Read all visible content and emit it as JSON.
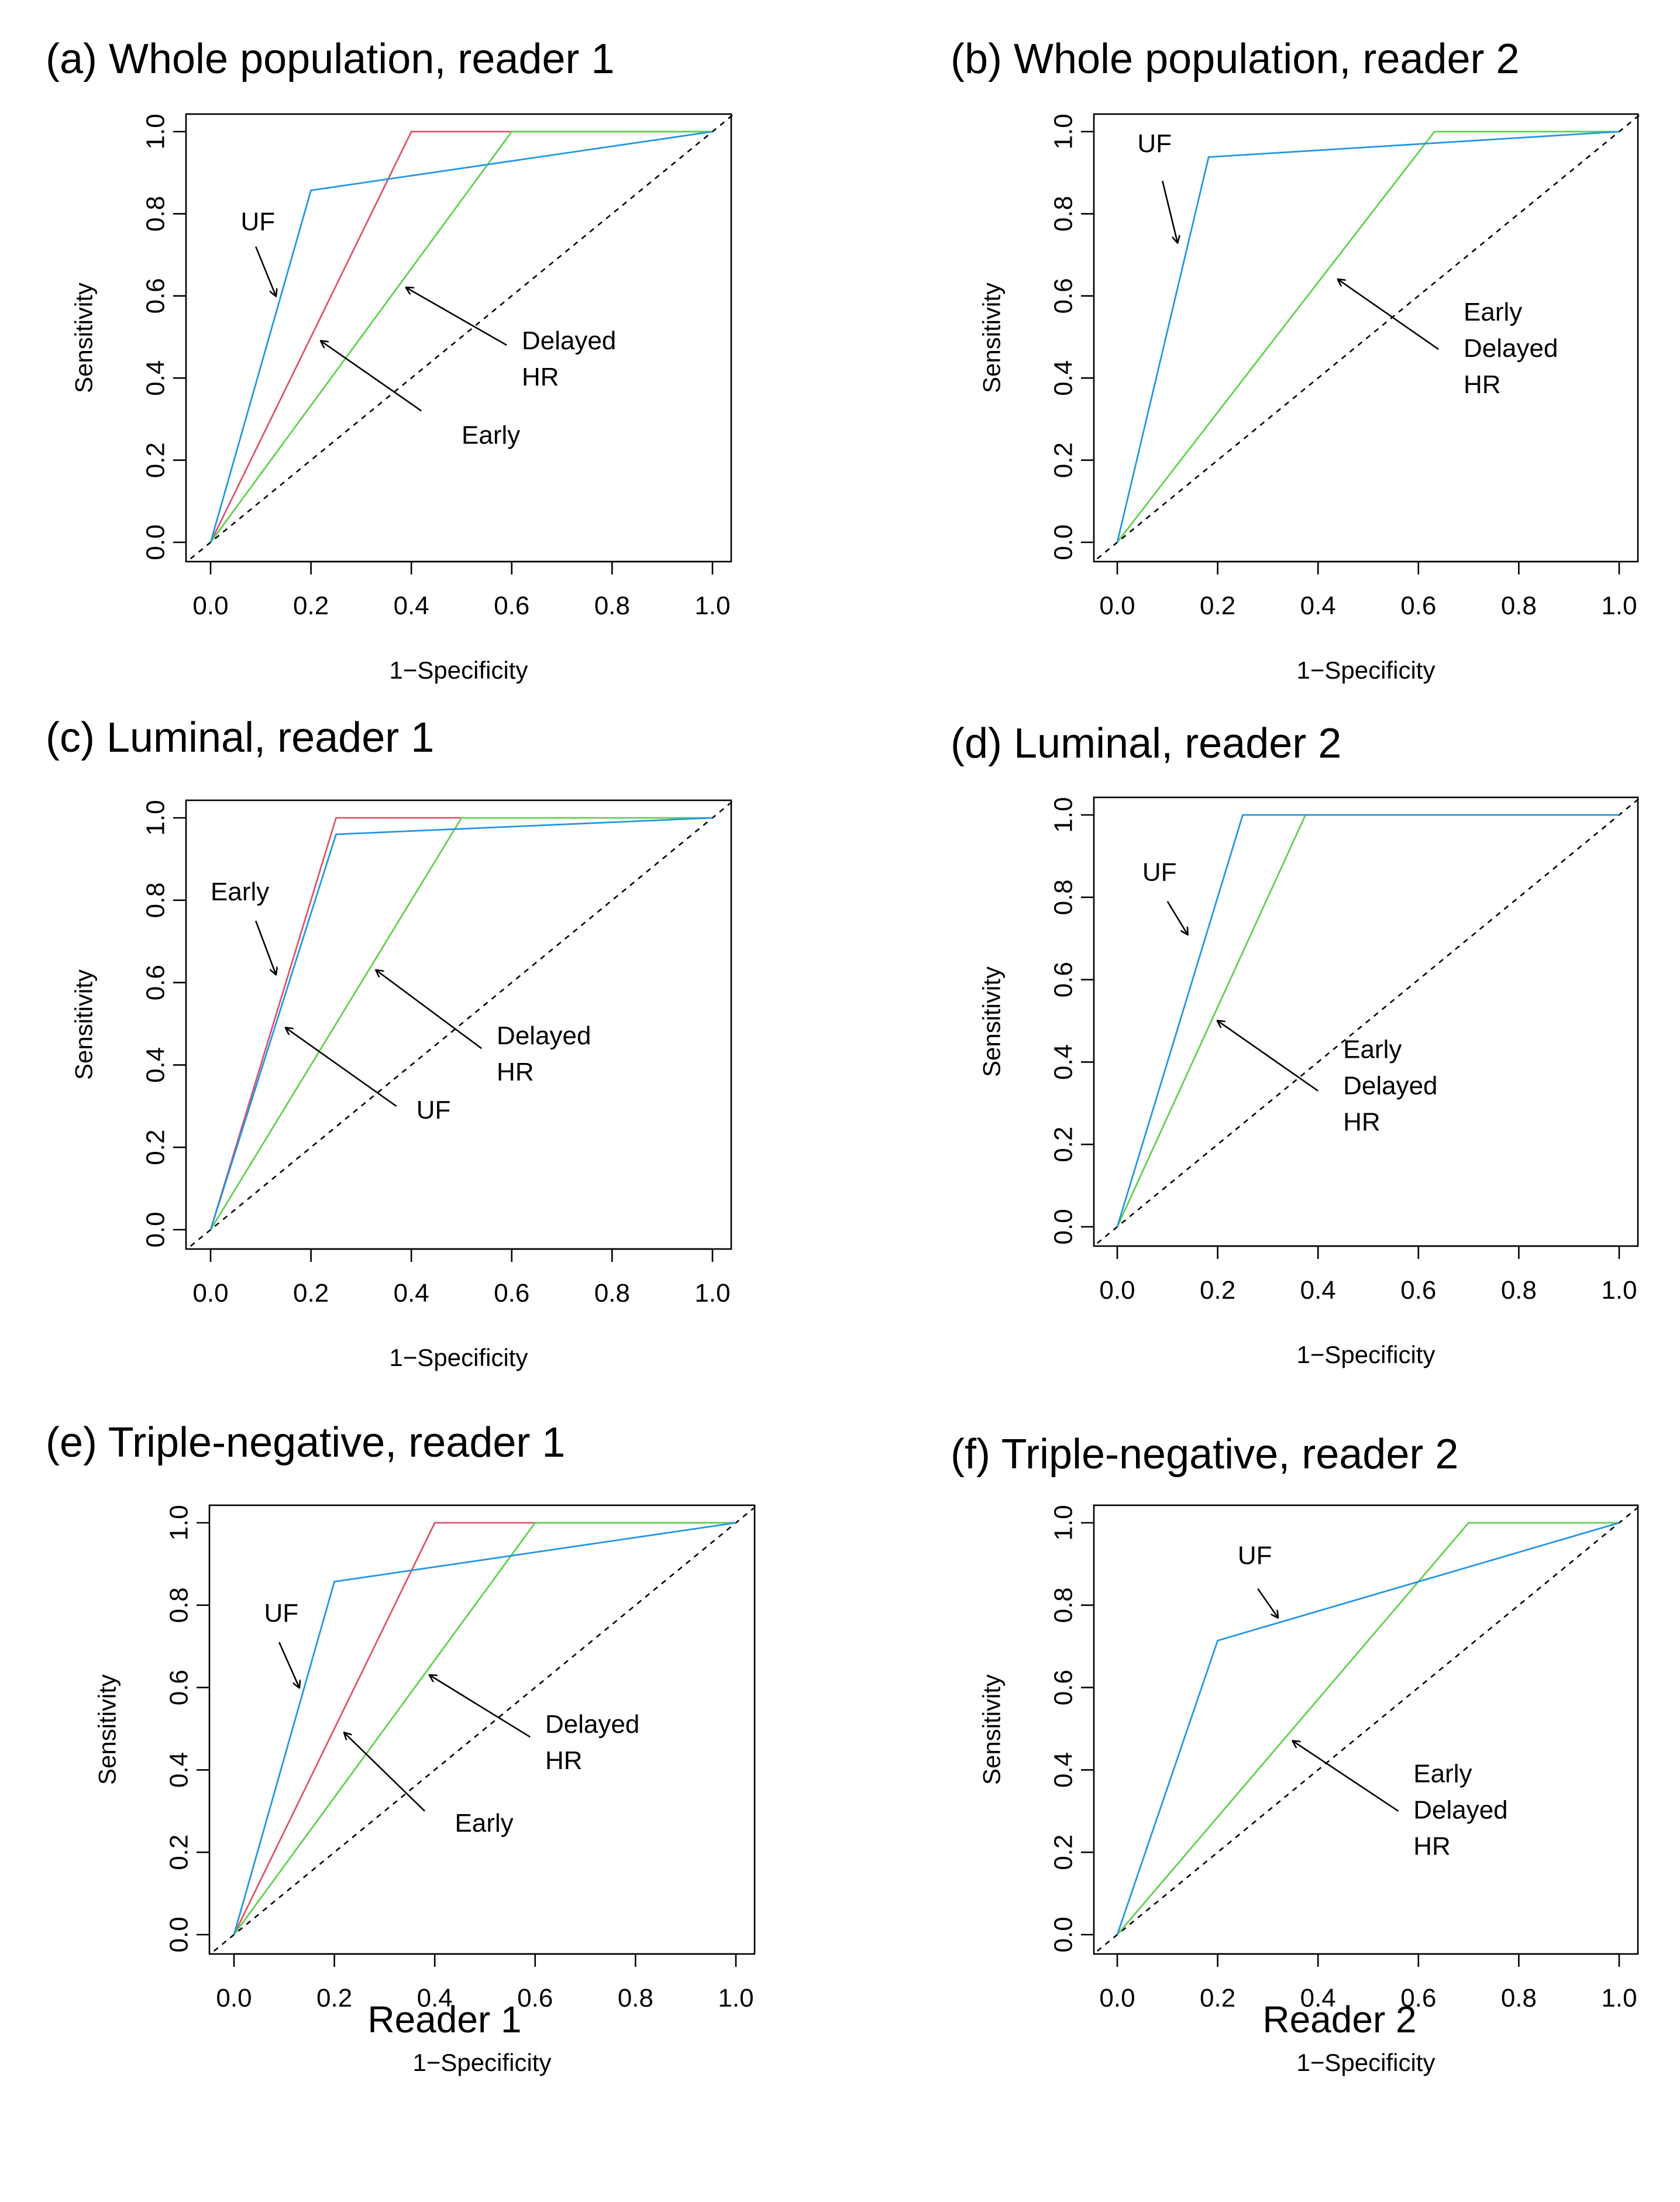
{
  "colors": {
    "early": "#df536b",
    "delayed_hr": "#61d04f",
    "uf": "#2297e6",
    "chance": "#000000"
  },
  "bottom_labels": {
    "reader1": "Reader 1",
    "reader2": "Reader 2"
  },
  "chart_data": [
    {
      "panel": "a",
      "type": "line",
      "title": "(a) Whole population, reader 1",
      "xlabel": "1−Specificity",
      "ylabel": "Sensitivity",
      "xlim": [
        0,
        1
      ],
      "ylim": [
        0,
        1
      ],
      "xticks": [
        "0.0",
        "0.2",
        "0.4",
        "0.6",
        "0.8",
        "1.0"
      ],
      "yticks": [
        "0.0",
        "0.2",
        "0.4",
        "0.6",
        "0.8",
        "1.0"
      ],
      "series": [
        {
          "name": "Early",
          "color": "early",
          "x": [
            0,
            0.4,
            1.0
          ],
          "y": [
            0,
            1.0,
            1.0
          ]
        },
        {
          "name": "Delayed HR",
          "color": "delayed_hr",
          "x": [
            0,
            0.6,
            1.0
          ],
          "y": [
            0,
            1.0,
            1.0
          ]
        },
        {
          "name": "UF",
          "color": "uf",
          "x": [
            0,
            0.2,
            1.0
          ],
          "y": [
            0,
            0.857,
            1.0
          ]
        }
      ],
      "annotations": [
        {
          "lines": [
            "UF"
          ],
          "at": [
            0.06,
            0.76
          ],
          "arrow_from": [
            0.09,
            0.72
          ],
          "arrow_to": [
            0.13,
            0.6
          ]
        },
        {
          "lines": [
            "Delayed",
            "HR"
          ],
          "at": [
            0.62,
            0.47
          ],
          "arrow_from": [
            0.59,
            0.48
          ],
          "arrow_to": [
            0.39,
            0.62
          ]
        },
        {
          "lines": [
            "Early"
          ],
          "at": [
            0.5,
            0.24
          ],
          "arrow_from": [
            0.42,
            0.32
          ],
          "arrow_to": [
            0.22,
            0.49
          ]
        }
      ]
    },
    {
      "panel": "b",
      "type": "line",
      "title": "(b) Whole population, reader 2",
      "xlabel": "1−Specificity",
      "ylabel": "Sensitivity",
      "xlim": [
        0,
        1
      ],
      "ylim": [
        0,
        1
      ],
      "xticks": [
        "0.0",
        "0.2",
        "0.4",
        "0.6",
        "0.8",
        "1.0"
      ],
      "yticks": [
        "0.0",
        "0.2",
        "0.4",
        "0.6",
        "0.8",
        "1.0"
      ],
      "series": [
        {
          "name": "Early/Delayed HR",
          "color": "delayed_hr",
          "x": [
            0,
            0.632,
            1.0
          ],
          "y": [
            0,
            1.0,
            1.0
          ]
        },
        {
          "name": "UF",
          "color": "uf",
          "x": [
            0,
            0.182,
            1.0
          ],
          "y": [
            0,
            0.938,
            1.0
          ]
        }
      ],
      "annotations": [
        {
          "lines": [
            "UF"
          ],
          "at": [
            0.04,
            0.95
          ],
          "arrow_from": [
            0.09,
            0.88
          ],
          "arrow_to": [
            0.12,
            0.73
          ]
        },
        {
          "lines": [
            "Early",
            "Delayed",
            "HR"
          ],
          "at": [
            0.69,
            0.54
          ],
          "arrow_from": [
            0.64,
            0.47
          ],
          "arrow_to": [
            0.44,
            0.64
          ]
        }
      ]
    },
    {
      "panel": "c",
      "type": "line",
      "title": "(c) Luminal, reader 1",
      "xlabel": "1−Specificity",
      "ylabel": "Sensitivity",
      "xlim": [
        0,
        1
      ],
      "ylim": [
        0,
        1
      ],
      "xticks": [
        "0.0",
        "0.2",
        "0.4",
        "0.6",
        "0.8",
        "1.0"
      ],
      "yticks": [
        "0.0",
        "0.2",
        "0.4",
        "0.6",
        "0.8",
        "1.0"
      ],
      "series": [
        {
          "name": "Early",
          "color": "early",
          "x": [
            0,
            0.25,
            0.5
          ],
          "y": [
            0,
            1.0,
            1.0
          ]
        },
        {
          "name": "Delayed HR",
          "color": "delayed_hr",
          "x": [
            0,
            0.5,
            1.0
          ],
          "y": [
            0,
            1.0,
            1.0
          ]
        },
        {
          "name": "UF",
          "color": "uf",
          "x": [
            0,
            0.25,
            1.0
          ],
          "y": [
            0,
            0.96,
            1.0
          ]
        }
      ],
      "annotations": [
        {
          "lines": [
            "Early"
          ],
          "at": [
            0.0,
            0.8
          ],
          "arrow_from": [
            0.09,
            0.75
          ],
          "arrow_to": [
            0.13,
            0.62
          ]
        },
        {
          "lines": [
            "Delayed",
            "HR"
          ],
          "at": [
            0.57,
            0.45
          ],
          "arrow_from": [
            0.54,
            0.44
          ],
          "arrow_to": [
            0.33,
            0.63
          ]
        },
        {
          "lines": [
            "UF"
          ],
          "at": [
            0.41,
            0.27
          ],
          "arrow_from": [
            0.37,
            0.3
          ],
          "arrow_to": [
            0.15,
            0.49
          ]
        }
      ]
    },
    {
      "panel": "d",
      "type": "line",
      "title": "(d) Luminal, reader 2",
      "xlabel": "1−Specificity",
      "ylabel": "Sensitivity",
      "xlim": [
        0,
        1
      ],
      "ylim": [
        0,
        1
      ],
      "xticks": [
        "0.0",
        "0.2",
        "0.4",
        "0.6",
        "0.8",
        "1.0"
      ],
      "yticks": [
        "0.0",
        "0.2",
        "0.4",
        "0.6",
        "0.8",
        "1.0"
      ],
      "series": [
        {
          "name": "Early/Delayed HR",
          "color": "delayed_hr",
          "x": [
            0,
            0.375,
            1.0
          ],
          "y": [
            0,
            1.0,
            1.0
          ]
        },
        {
          "name": "UF",
          "color": "uf",
          "x": [
            0,
            0.25,
            1.0
          ],
          "y": [
            0,
            1.0,
            1.0
          ]
        }
      ],
      "annotations": [
        {
          "lines": [
            "UF"
          ],
          "at": [
            0.05,
            0.84
          ],
          "arrow_from": [
            0.1,
            0.79
          ],
          "arrow_to": [
            0.14,
            0.71
          ]
        },
        {
          "lines": [
            "Early",
            "Delayed",
            "HR"
          ],
          "at": [
            0.45,
            0.41
          ],
          "arrow_from": [
            0.4,
            0.33
          ],
          "arrow_to": [
            0.2,
            0.5
          ]
        }
      ]
    },
    {
      "panel": "e",
      "type": "line",
      "title": "(e) Triple-negative, reader 1",
      "xlabel": "1−Specificity",
      "ylabel": "Sensitivity",
      "xlim": [
        0,
        1
      ],
      "ylim": [
        0,
        1
      ],
      "xticks": [
        "0.0",
        "0.2",
        "0.4",
        "0.6",
        "0.8",
        "1.0"
      ],
      "yticks": [
        "0.0",
        "0.2",
        "0.4",
        "0.6",
        "0.8",
        "1.0"
      ],
      "series": [
        {
          "name": "Early",
          "color": "early",
          "x": [
            0,
            0.4,
            1.0
          ],
          "y": [
            0,
            1.0,
            1.0
          ]
        },
        {
          "name": "Delayed HR",
          "color": "delayed_hr",
          "x": [
            0,
            0.6,
            1.0
          ],
          "y": [
            0,
            1.0,
            1.0
          ]
        },
        {
          "name": "UF",
          "color": "uf",
          "x": [
            0,
            0.2,
            1.0
          ],
          "y": [
            0,
            0.857,
            1.0
          ]
        }
      ],
      "annotations": [
        {
          "lines": [
            "UF"
          ],
          "at": [
            0.06,
            0.76
          ],
          "arrow_from": [
            0.09,
            0.71
          ],
          "arrow_to": [
            0.13,
            0.6
          ]
        },
        {
          "lines": [
            "Delayed",
            "HR"
          ],
          "at": [
            0.62,
            0.49
          ],
          "arrow_from": [
            0.59,
            0.48
          ],
          "arrow_to": [
            0.39,
            0.63
          ]
        },
        {
          "lines": [
            "Early"
          ],
          "at": [
            0.44,
            0.25
          ],
          "arrow_from": [
            0.38,
            0.3
          ],
          "arrow_to": [
            0.22,
            0.49
          ]
        }
      ]
    },
    {
      "panel": "f",
      "type": "line",
      "title": "(f) Triple-negative, reader 2",
      "xlabel": "1−Specificity",
      "ylabel": "Sensitivity",
      "xlim": [
        0,
        1
      ],
      "ylim": [
        0,
        1
      ],
      "xticks": [
        "0.0",
        "0.2",
        "0.4",
        "0.6",
        "0.8",
        "1.0"
      ],
      "yticks": [
        "0.0",
        "0.2",
        "0.4",
        "0.6",
        "0.8",
        "1.0"
      ],
      "series": [
        {
          "name": "Early/Delayed HR",
          "color": "delayed_hr",
          "x": [
            0,
            0.7,
            1.0
          ],
          "y": [
            0,
            1.0,
            1.0
          ]
        },
        {
          "name": "UF",
          "color": "uf",
          "x": [
            0,
            0.2,
            1.0
          ],
          "y": [
            0,
            0.714,
            1.0
          ]
        }
      ],
      "annotations": [
        {
          "lines": [
            "UF"
          ],
          "at": [
            0.24,
            0.9
          ],
          "arrow_from": [
            0.28,
            0.84
          ],
          "arrow_to": [
            0.32,
            0.77
          ]
        },
        {
          "lines": [
            "Early",
            "Delayed",
            "HR"
          ],
          "at": [
            0.59,
            0.37
          ],
          "arrow_from": [
            0.56,
            0.3
          ],
          "arrow_to": [
            0.35,
            0.47
          ]
        }
      ]
    }
  ]
}
